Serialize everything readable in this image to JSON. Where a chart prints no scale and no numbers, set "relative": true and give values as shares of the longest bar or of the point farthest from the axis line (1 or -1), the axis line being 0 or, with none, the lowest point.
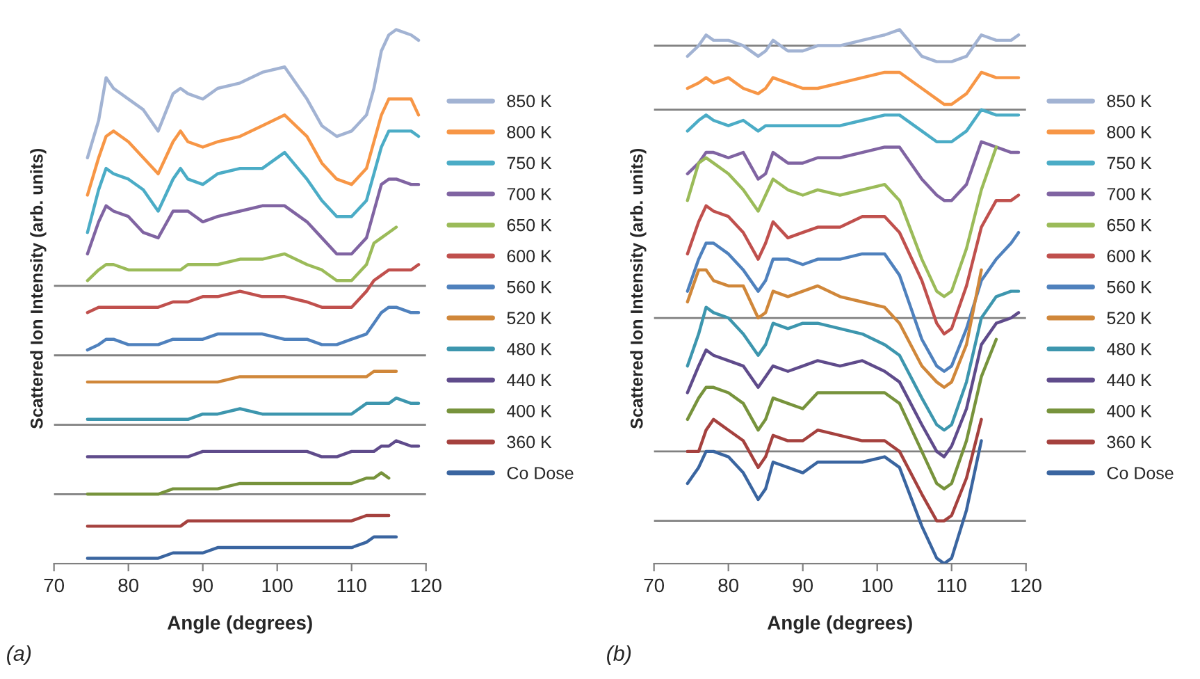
{
  "chart_data": [
    {
      "type": "line",
      "xlabel": "Angle (degrees)",
      "ylabel": "Scattered Ion Intensity (arb. units)",
      "relative": true,
      "legend": "right",
      "grid": false,
      "tick_labels": "x",
      "marker": "none",
      "line_style": "solid",
      "annotations": [
        "(a)"
      ],
      "xlim": [
        70,
        120
      ],
      "xticks": [
        70,
        80,
        90,
        100,
        110,
        120
      ],
      "x": [
        74.5,
        76,
        77,
        78,
        80,
        82,
        84,
        86,
        87,
        88,
        90,
        92,
        95,
        98,
        101,
        104,
        106,
        108,
        110,
        112,
        113,
        114,
        115,
        116,
        118,
        119
      ],
      "ref_lines": [
        {
          "axis": "y",
          "value": 0.52,
          "color": "#808080"
        },
        {
          "axis": "y",
          "value": 0.39,
          "color": "#808080"
        },
        {
          "axis": "y",
          "value": 0.26,
          "color": "#808080"
        },
        {
          "axis": "y",
          "value": 0.13,
          "color": "#808080"
        }
      ],
      "series": [
        {
          "name": "850 K",
          "color": "#a2b3d3",
          "values": [
            0.76,
            0.83,
            0.91,
            0.89,
            0.87,
            0.85,
            0.81,
            0.88,
            0.89,
            0.88,
            0.87,
            0.89,
            0.9,
            0.92,
            0.93,
            0.87,
            0.82,
            0.8,
            0.81,
            0.84,
            0.89,
            0.96,
            0.99,
            1.0,
            0.99,
            0.98
          ]
        },
        {
          "name": "800 K",
          "color": "#f79646",
          "values": [
            0.69,
            0.76,
            0.8,
            0.81,
            0.79,
            0.76,
            0.73,
            0.79,
            0.81,
            0.79,
            0.78,
            0.79,
            0.8,
            0.82,
            0.84,
            0.8,
            0.75,
            0.72,
            0.71,
            0.74,
            0.79,
            0.84,
            0.87,
            0.87,
            0.87,
            0.84
          ]
        },
        {
          "name": "750 K",
          "color": "#4bacc6",
          "values": [
            0.62,
            0.7,
            0.74,
            0.73,
            0.72,
            0.7,
            0.66,
            0.72,
            0.74,
            0.72,
            0.71,
            0.73,
            0.74,
            0.74,
            0.77,
            0.72,
            0.68,
            0.65,
            0.65,
            0.68,
            0.73,
            0.78,
            0.81,
            0.81,
            0.81,
            0.8
          ]
        },
        {
          "name": "700 K",
          "color": "#8064a2",
          "values": [
            0.58,
            0.64,
            0.67,
            0.66,
            0.65,
            0.62,
            0.61,
            0.66,
            0.66,
            0.66,
            0.64,
            0.65,
            0.66,
            0.67,
            0.67,
            0.64,
            0.61,
            0.58,
            0.58,
            0.61,
            0.66,
            0.71,
            0.72,
            0.72,
            0.71,
            0.71
          ]
        },
        {
          "name": "650 K",
          "color": "#9bbb59",
          "values": [
            0.53,
            0.55,
            0.56,
            0.56,
            0.55,
            0.55,
            0.55,
            0.55,
            0.55,
            0.56,
            0.56,
            0.56,
            0.57,
            0.57,
            0.58,
            0.56,
            0.55,
            0.53,
            0.53,
            0.56,
            0.6,
            0.61,
            0.62,
            0.63,
            null,
            null
          ]
        },
        {
          "name": "600 K",
          "color": "#c0504d",
          "values": [
            0.47,
            0.48,
            0.48,
            0.48,
            0.48,
            0.48,
            0.48,
            0.49,
            0.49,
            0.49,
            0.5,
            0.5,
            0.51,
            0.5,
            0.5,
            0.49,
            0.48,
            0.48,
            0.48,
            0.51,
            0.53,
            0.54,
            0.55,
            0.55,
            0.55,
            0.56
          ]
        },
        {
          "name": "560 K",
          "color": "#4f81bd",
          "values": [
            0.4,
            0.41,
            0.42,
            0.42,
            0.41,
            0.41,
            0.41,
            0.42,
            0.42,
            0.42,
            0.42,
            0.43,
            0.43,
            0.43,
            0.42,
            0.42,
            0.41,
            0.41,
            0.42,
            0.43,
            0.45,
            0.47,
            0.48,
            0.48,
            0.47,
            0.47
          ]
        },
        {
          "name": "520 K",
          "color": "#d0873a",
          "values": [
            0.34,
            0.34,
            0.34,
            0.34,
            0.34,
            0.34,
            0.34,
            0.34,
            0.34,
            0.34,
            0.34,
            0.34,
            0.35,
            0.35,
            0.35,
            0.35,
            0.35,
            0.35,
            0.35,
            0.35,
            0.36,
            0.36,
            0.36,
            0.36,
            null,
            null
          ]
        },
        {
          "name": "480 K",
          "color": "#3d96ae",
          "values": [
            0.27,
            0.27,
            0.27,
            0.27,
            0.27,
            0.27,
            0.27,
            0.27,
            0.27,
            0.27,
            0.28,
            0.28,
            0.29,
            0.28,
            0.28,
            0.28,
            0.28,
            0.28,
            0.28,
            0.3,
            0.3,
            0.3,
            0.3,
            0.31,
            0.3,
            0.3
          ]
        },
        {
          "name": "440 K",
          "color": "#5f4b8b",
          "values": [
            0.2,
            0.2,
            0.2,
            0.2,
            0.2,
            0.2,
            0.2,
            0.2,
            0.2,
            0.2,
            0.21,
            0.21,
            0.21,
            0.21,
            0.21,
            0.21,
            0.2,
            0.2,
            0.21,
            0.21,
            0.21,
            0.22,
            0.22,
            0.23,
            0.22,
            0.22
          ]
        },
        {
          "name": "400 K",
          "color": "#77933c",
          "values": [
            0.13,
            0.13,
            0.13,
            0.13,
            0.13,
            0.13,
            0.13,
            0.14,
            0.14,
            0.14,
            0.14,
            0.14,
            0.15,
            0.15,
            0.15,
            0.15,
            0.15,
            0.15,
            0.15,
            0.16,
            0.16,
            0.17,
            0.16,
            null,
            null,
            null
          ]
        },
        {
          "name": "360 K",
          "color": "#a5413e",
          "values": [
            0.07,
            0.07,
            0.07,
            0.07,
            0.07,
            0.07,
            0.07,
            0.07,
            0.07,
            0.08,
            0.08,
            0.08,
            0.08,
            0.08,
            0.08,
            0.08,
            0.08,
            0.08,
            0.08,
            0.09,
            0.09,
            0.09,
            0.09,
            null,
            null,
            null
          ]
        },
        {
          "name": "Co Dose",
          "color": "#3a65a0",
          "values": [
            0.01,
            0.01,
            0.01,
            0.01,
            0.01,
            0.01,
            0.01,
            0.02,
            0.02,
            0.02,
            0.02,
            0.03,
            0.03,
            0.03,
            0.03,
            0.03,
            0.03,
            0.03,
            0.03,
            0.04,
            0.05,
            0.05,
            0.05,
            0.05,
            null,
            null
          ]
        }
      ]
    },
    {
      "type": "line",
      "xlabel": "Angle (degrees)",
      "ylabel": "Scattered Ion Intensity (arb. units)",
      "relative": true,
      "legend": "right",
      "grid": false,
      "tick_labels": "x",
      "marker": "none",
      "line_style": "solid",
      "annotations": [
        "(b)"
      ],
      "xlim": [
        70,
        120
      ],
      "xticks": [
        70,
        80,
        90,
        100,
        110,
        120
      ],
      "x": [
        74.5,
        76,
        77,
        78,
        80,
        82,
        84,
        85,
        86,
        88,
        90,
        92,
        95,
        98,
        101,
        103,
        106,
        108,
        109,
        110,
        112,
        114,
        116,
        118,
        119
      ],
      "ref_lines": [
        {
          "axis": "y",
          "value": 0.97,
          "color": "#808080"
        },
        {
          "axis": "y",
          "value": 0.85,
          "color": "#808080"
        },
        {
          "axis": "y",
          "value": 0.46,
          "color": "#808080"
        },
        {
          "axis": "y",
          "value": 0.21,
          "color": "#808080"
        },
        {
          "axis": "y",
          "value": 0.08,
          "color": "#808080"
        }
      ],
      "series": [
        {
          "name": "850 K",
          "color": "#a2b3d3",
          "values": [
            0.95,
            0.97,
            0.99,
            0.98,
            0.98,
            0.97,
            0.95,
            0.96,
            0.98,
            0.96,
            0.96,
            0.97,
            0.97,
            0.98,
            0.99,
            1.0,
            0.95,
            0.94,
            0.94,
            0.94,
            0.95,
            0.99,
            0.98,
            0.98,
            0.99
          ]
        },
        {
          "name": "800 K",
          "color": "#f79646",
          "values": [
            0.89,
            0.9,
            0.91,
            0.9,
            0.91,
            0.89,
            0.88,
            0.89,
            0.91,
            0.9,
            0.89,
            0.89,
            0.9,
            0.91,
            0.92,
            0.92,
            0.89,
            0.87,
            0.86,
            0.86,
            0.88,
            0.92,
            0.91,
            0.91,
            0.91
          ]
        },
        {
          "name": "750 K",
          "color": "#4bacc6",
          "values": [
            0.81,
            0.83,
            0.84,
            0.83,
            0.82,
            0.83,
            0.81,
            0.82,
            0.82,
            0.82,
            0.82,
            0.82,
            0.82,
            0.83,
            0.84,
            0.84,
            0.81,
            0.79,
            0.79,
            0.79,
            0.81,
            0.85,
            0.84,
            0.84,
            0.84
          ]
        },
        {
          "name": "700 K",
          "color": "#8064a2",
          "values": [
            0.73,
            0.75,
            0.77,
            0.77,
            0.76,
            0.77,
            0.72,
            0.73,
            0.77,
            0.75,
            0.75,
            0.76,
            0.76,
            0.77,
            0.78,
            0.78,
            0.72,
            0.69,
            0.68,
            0.68,
            0.71,
            0.79,
            0.78,
            0.77,
            0.77
          ]
        },
        {
          "name": "650 K",
          "color": "#9bbb59",
          "values": [
            0.68,
            0.75,
            0.76,
            0.75,
            0.73,
            0.7,
            0.66,
            0.69,
            0.72,
            0.7,
            0.69,
            0.7,
            0.69,
            0.7,
            0.71,
            0.68,
            0.57,
            0.51,
            0.5,
            0.51,
            0.59,
            0.7,
            0.78,
            null,
            null
          ]
        },
        {
          "name": "600 K",
          "color": "#c0504d",
          "values": [
            0.58,
            0.64,
            0.67,
            0.66,
            0.65,
            0.62,
            0.57,
            0.6,
            0.64,
            0.61,
            0.62,
            0.63,
            0.63,
            0.65,
            0.65,
            0.62,
            0.53,
            0.45,
            0.43,
            0.44,
            0.52,
            0.63,
            0.68,
            0.68,
            0.69
          ]
        },
        {
          "name": "560 K",
          "color": "#4f81bd",
          "values": [
            0.51,
            0.57,
            0.6,
            0.6,
            0.58,
            0.55,
            0.51,
            0.53,
            0.57,
            0.57,
            0.56,
            0.57,
            0.57,
            0.58,
            0.58,
            0.54,
            0.42,
            0.37,
            0.36,
            0.37,
            0.44,
            0.53,
            0.57,
            0.6,
            0.62
          ]
        },
        {
          "name": "520 K",
          "color": "#d0873a",
          "values": [
            0.49,
            0.55,
            0.55,
            0.53,
            0.52,
            0.52,
            0.46,
            0.47,
            0.51,
            0.5,
            0.51,
            0.52,
            0.5,
            0.49,
            0.48,
            0.45,
            0.37,
            0.34,
            0.33,
            0.34,
            0.41,
            0.55,
            null,
            null,
            null
          ]
        },
        {
          "name": "480 K",
          "color": "#3d96ae",
          "values": [
            0.37,
            0.43,
            0.48,
            0.47,
            0.46,
            0.43,
            0.39,
            0.41,
            0.45,
            0.44,
            0.45,
            0.45,
            0.44,
            0.43,
            0.41,
            0.39,
            0.31,
            0.26,
            0.25,
            0.26,
            0.34,
            0.46,
            0.5,
            0.51,
            0.51
          ]
        },
        {
          "name": "440 K",
          "color": "#5f4b8b",
          "values": [
            0.32,
            0.37,
            0.4,
            0.39,
            0.38,
            0.37,
            0.33,
            0.35,
            0.37,
            0.36,
            0.37,
            0.38,
            0.37,
            0.38,
            0.36,
            0.34,
            0.26,
            0.21,
            0.2,
            0.22,
            0.29,
            0.41,
            0.45,
            0.46,
            0.47
          ]
        },
        {
          "name": "400 K",
          "color": "#77933c",
          "values": [
            0.27,
            0.31,
            0.33,
            0.33,
            0.32,
            0.3,
            0.25,
            0.27,
            0.31,
            0.3,
            0.29,
            0.32,
            0.32,
            0.32,
            0.32,
            0.3,
            0.21,
            0.15,
            0.14,
            0.15,
            0.23,
            0.35,
            0.42,
            null,
            null
          ]
        },
        {
          "name": "360 K",
          "color": "#a5413e",
          "values": [
            0.21,
            0.21,
            0.25,
            0.27,
            0.25,
            0.23,
            0.18,
            0.2,
            0.24,
            0.23,
            0.23,
            0.25,
            0.24,
            0.23,
            0.23,
            0.21,
            0.13,
            0.08,
            0.08,
            0.09,
            0.16,
            0.27,
            null,
            null,
            null
          ]
        },
        {
          "name": "Co Dose",
          "color": "#3a65a0",
          "values": [
            0.15,
            0.18,
            0.21,
            0.21,
            0.2,
            0.17,
            0.12,
            0.14,
            0.19,
            0.18,
            0.17,
            0.19,
            0.19,
            0.19,
            0.2,
            0.18,
            0.07,
            0.01,
            0.0,
            0.01,
            0.1,
            0.23,
            null,
            null,
            null
          ]
        }
      ]
    }
  ]
}
